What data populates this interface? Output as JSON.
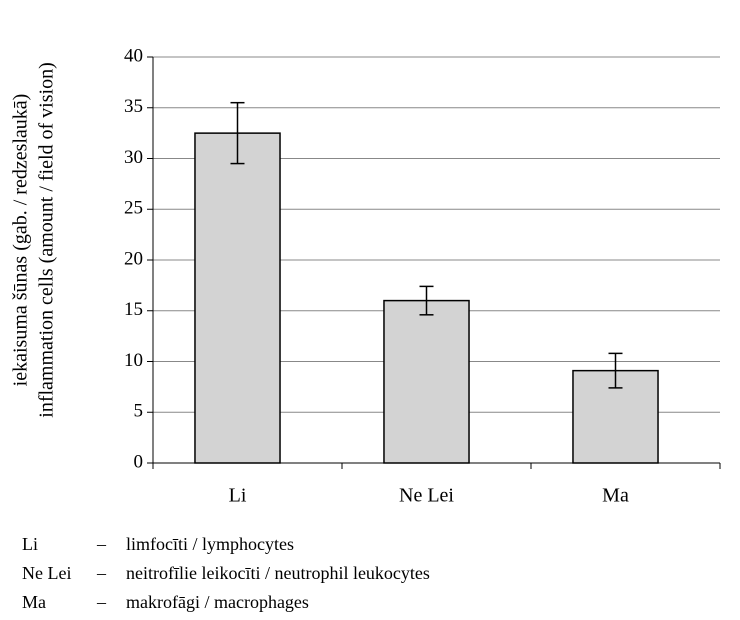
{
  "chart_data": {
    "type": "bar",
    "ylabel_lines": [
      "iekaisuma šūnas (gab. / redzeslaukā)",
      "inflammation cells (amount / field of vision)"
    ],
    "categories": [
      "Li",
      "Ne Lei",
      "Ma"
    ],
    "values": [
      32.5,
      16,
      9.1
    ],
    "errors": [
      3,
      1.4,
      1.7
    ],
    "color": "#d3d3d3",
    "ylim": [
      0,
      40
    ],
    "yticks": [
      0,
      5,
      10,
      15,
      20,
      25,
      30,
      35,
      40
    ],
    "grid": true
  },
  "legend_notes": [
    {
      "abbr": "Li",
      "sep": "–",
      "desc": "limfocīti / lymphocytes"
    },
    {
      "abbr": "Ne Lei",
      "sep": "–",
      "desc": "neitrofīlie leikocīti / neutrophil leukocytes"
    },
    {
      "abbr": "Ma",
      "sep": "–",
      "desc": "makrofāgi / macrophages"
    }
  ]
}
